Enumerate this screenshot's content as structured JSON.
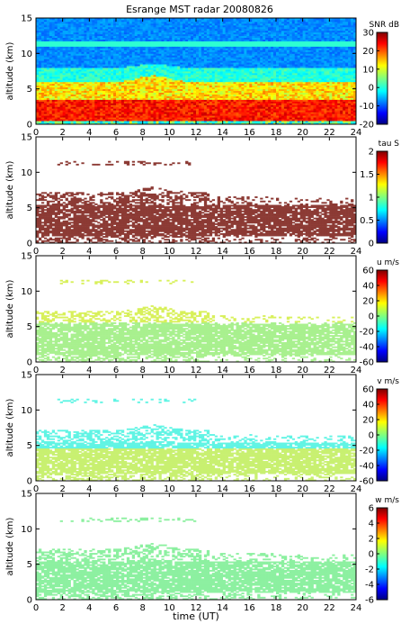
{
  "chart_data": {
    "type": "heatmap",
    "title": "Esrange MST radar 20080826",
    "xlabel": "time (UT)",
    "xlim": [
      0,
      24
    ],
    "x_ticks": [
      "0",
      "2",
      "4",
      "6",
      "8",
      "10",
      "12",
      "14",
      "16",
      "18",
      "20",
      "22",
      "24"
    ],
    "panels": [
      {
        "ylabel": "altitude (km)",
        "ylim": [
          0,
          15
        ],
        "y_ticks": [
          "0",
          "5",
          "10",
          "15"
        ],
        "colorbar": {
          "label": "SNR dB",
          "min": -20,
          "max": 30,
          "ticks": [
            "30",
            "20",
            "10",
            "0",
            "-10",
            "-20"
          ]
        }
      },
      {
        "ylabel": "altitude (km)",
        "ylim": [
          0,
          15
        ],
        "y_ticks": [
          "0",
          "5",
          "10",
          "15"
        ],
        "colorbar": {
          "label": "tau S",
          "min": 0,
          "max": 2,
          "ticks": [
            "2",
            "1.5",
            "1",
            "0.5",
            "0"
          ]
        }
      },
      {
        "ylabel": "altitude (km)",
        "ylim": [
          0,
          15
        ],
        "y_ticks": [
          "0",
          "5",
          "10",
          "15"
        ],
        "colorbar": {
          "label": "u m/s",
          "min": -60,
          "max": 60,
          "ticks": [
            "60",
            "40",
            "20",
            "0",
            "-20",
            "-40",
            "-60"
          ]
        }
      },
      {
        "ylabel": "altitude (km)",
        "ylim": [
          0,
          15
        ],
        "y_ticks": [
          "0",
          "5",
          "10",
          "15"
        ],
        "colorbar": {
          "label": "v m/s",
          "min": -60,
          "max": 60,
          "ticks": [
            "60",
            "40",
            "20",
            "0",
            "-20",
            "-40",
            "-60"
          ]
        }
      },
      {
        "ylabel": "altitude (km)",
        "ylim": [
          0,
          15
        ],
        "y_ticks": [
          "0",
          "5",
          "10",
          "15"
        ],
        "colorbar": {
          "label": "w m/s",
          "min": -6,
          "max": 6,
          "ticks": [
            "6",
            "4",
            "2",
            "0",
            "-2",
            "-4",
            "-6"
          ]
        }
      }
    ]
  }
}
